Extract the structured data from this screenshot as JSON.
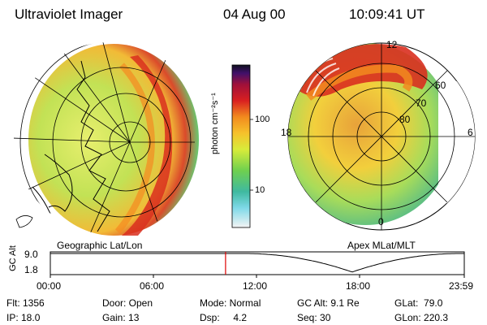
{
  "header": {
    "instrument": "Ultraviolet Imager",
    "date": "04 Aug 00",
    "time": "10:09:41 UT"
  },
  "left_panel": {
    "label": "Geographic Lat/Lon"
  },
  "right_panel": {
    "label": "Apex MLat/MLT",
    "mlt_labels": {
      "top": "12",
      "left": "18",
      "right": "6",
      "bottom": "0"
    },
    "lat_labels": [
      "60",
      "70",
      "80"
    ]
  },
  "colorbar": {
    "unit_label": "photon cm⁻²s⁻¹",
    "ticks": [
      "100",
      "10"
    ]
  },
  "altitude_plot": {
    "ylabel": "GC Alt",
    "yticks": [
      "9.0",
      "1.8"
    ],
    "xticks": [
      "00:00",
      "06:00",
      "12:00",
      "18:00",
      "23:59"
    ],
    "current_time_marker": "10:09:41",
    "marker_color": "#dd0000"
  },
  "info": {
    "flt": "Flt: 1356",
    "ip": "IP: 18.0",
    "door": "Door: Open",
    "gain": "Gain: 13",
    "mode": "Mode: Normal",
    "dsp": "Dsp:     4.2",
    "gcalt": "GC Alt: 9.1 Re",
    "seq": "Seq: 30",
    "glat": "GLat:  79.0",
    "glon": "GLon: 220.3"
  }
}
